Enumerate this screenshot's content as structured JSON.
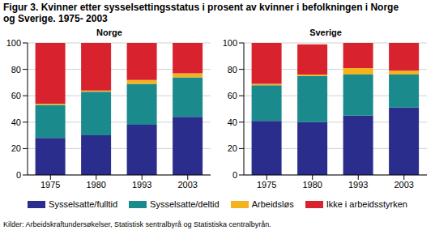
{
  "title": "Figur 3. Kvinner etter sysselsettingsstatus i prosent av kvinner i befolkningen i Norge og Sverige. 1975- 2003",
  "source": "Kilder: Arbeidskraftundersøkelser, Statistisk sentralbyrå og Statistiska centralbyrån.",
  "chart_data": [
    {
      "type": "bar",
      "title": "Norge",
      "stacked": true,
      "grid": true,
      "categories": [
        "1975",
        "1980",
        "1993",
        "2003"
      ],
      "ylim": [
        0,
        100
      ],
      "yticks": [
        0,
        20,
        40,
        60,
        80,
        100
      ],
      "series": [
        {
          "name": "Sysselsatte/fulltid",
          "color": "#2a2d8c",
          "values": [
            28,
            30,
            38,
            44
          ]
        },
        {
          "name": "Sysselsatte/deltid",
          "color": "#1a8a8c",
          "values": [
            25,
            33,
            31,
            30
          ]
        },
        {
          "name": "Arbeidsløs",
          "color": "#f2b31e",
          "values": [
            1,
            1,
            3,
            3
          ]
        },
        {
          "name": "Ikke i arbeidsstyrken",
          "color": "#d8232e",
          "values": [
            46,
            36,
            28,
            23
          ]
        }
      ]
    },
    {
      "type": "bar",
      "title": "Sverige",
      "stacked": true,
      "grid": true,
      "categories": [
        "1975",
        "1980",
        "1993",
        "2003"
      ],
      "ylim": [
        0,
        100
      ],
      "yticks": [
        0,
        20,
        40,
        60,
        80,
        100
      ],
      "series": [
        {
          "name": "Sysselsatte/fulltid",
          "color": "#2a2d8c",
          "values": [
            41,
            40,
            45,
            51
          ]
        },
        {
          "name": "Sysselsatte/deltid",
          "color": "#1a8a8c",
          "values": [
            27,
            35,
            31,
            25
          ]
        },
        {
          "name": "Arbeidsløs",
          "color": "#f2b31e",
          "values": [
            1,
            1,
            5,
            3
          ]
        },
        {
          "name": "Ikke i arbeidsstyrken",
          "color": "#d8232e",
          "values": [
            31,
            23,
            19,
            21
          ]
        }
      ]
    }
  ]
}
